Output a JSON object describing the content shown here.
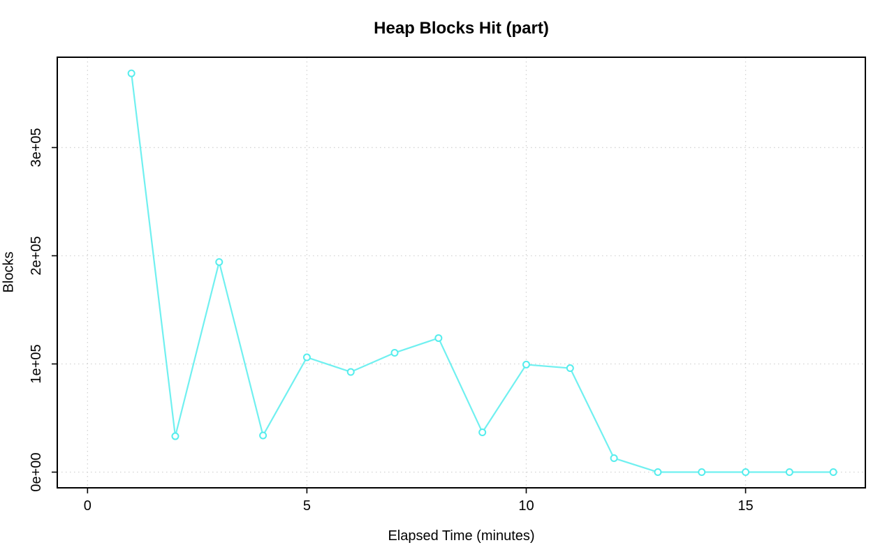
{
  "chart_data": {
    "type": "line",
    "title": "Heap Blocks Hit (part)",
    "xlabel": "Elapsed Time (minutes)",
    "ylabel": "Blocks",
    "x": [
      1,
      2,
      3,
      4,
      5,
      6,
      7,
      8,
      9,
      10,
      11,
      12,
      13,
      14,
      15,
      16,
      17
    ],
    "values": [
      368600,
      33200,
      194200,
      33900,
      106100,
      92600,
      110300,
      123900,
      36800,
      99400,
      96100,
      12900,
      0,
      0,
      0,
      0,
      0
    ],
    "x_ticks": [
      {
        "value": 0,
        "label": "0"
      },
      {
        "value": 5,
        "label": "5"
      },
      {
        "value": 10,
        "label": "10"
      },
      {
        "value": 15,
        "label": "15"
      }
    ],
    "y_ticks": [
      {
        "value": 0,
        "label": "0e+00"
      },
      {
        "value": 100000,
        "label": "1e+05"
      },
      {
        "value": 200000,
        "label": "2e+05"
      },
      {
        "value": 300000,
        "label": "3e+05"
      }
    ],
    "xlim": [
      -0.69,
      17.73
    ],
    "ylim": [
      -14500,
      383500
    ],
    "grid": true,
    "grid_style": "dotted",
    "legend_position": "none",
    "marker": "open-circle",
    "colors": {
      "line": "#70F0F0",
      "marker_stroke": "#55EDED",
      "marker_fill": "#ffffff",
      "grid": "#D3D3D3",
      "axis": "#000000",
      "text": "#000000",
      "background": "#ffffff"
    }
  }
}
